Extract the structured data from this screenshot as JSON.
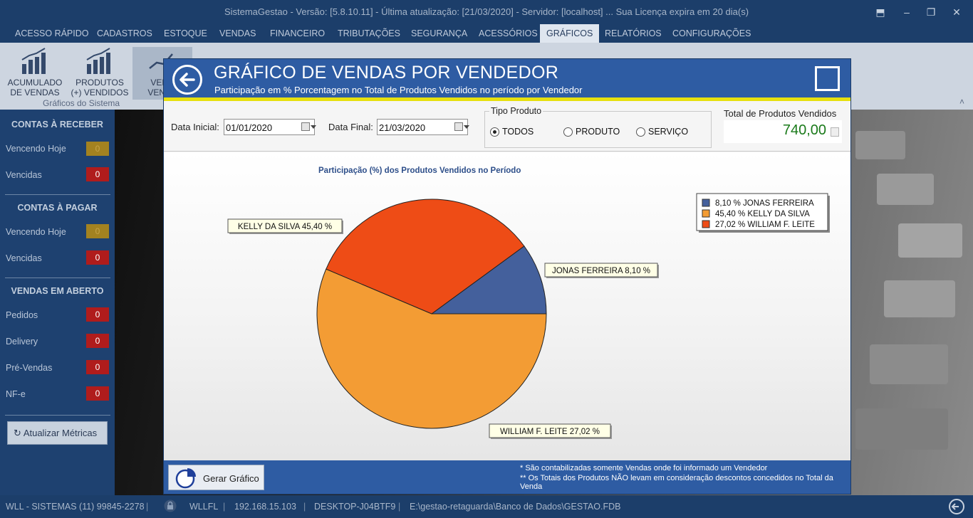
{
  "window": {
    "title": "SistemaGestao - Versão: [5.8.10.11] - Última atualização: [21/03/2020] - Servidor: [localhost] ... Sua Licença expira em 20 dia(s)",
    "buttons": [
      "restore-icon",
      "minimize-icon",
      "maximize-icon",
      "close-icon"
    ]
  },
  "menu": {
    "items": [
      "ACESSO RÁPIDO",
      "CADASTROS",
      "ESTOQUE",
      "VENDAS",
      "FINANCEIRO",
      "TRIBUTAÇÕES",
      "SEGURANÇA",
      "ACESSÓRIOS",
      "GRÁFICOS",
      "RELATÓRIOS",
      "CONFIGURAÇÕES"
    ],
    "active": "GRÁFICOS"
  },
  "ribbon": {
    "buttons": [
      {
        "line1": "ACUMULADO",
        "line2": "DE VENDAS"
      },
      {
        "line1": "PRODUTOS",
        "line2": "(+) VENDIDOS"
      },
      {
        "line1": "VEND",
        "line2": "VENDE"
      }
    ],
    "group_label": "Gráficos do Sistema"
  },
  "sidebar": {
    "receber": {
      "title": "CONTAS À RECEBER",
      "rows": [
        {
          "label": "Vencendo Hoje",
          "count": "0",
          "color": "#a38220"
        },
        {
          "label": "Vencidas",
          "count": "0",
          "color": "#b01c1c"
        }
      ]
    },
    "pagar": {
      "title": "CONTAS À PAGAR",
      "rows": [
        {
          "label": "Vencendo Hoje",
          "count": "0",
          "color": "#a38220"
        },
        {
          "label": "Vencidas",
          "count": "0",
          "color": "#b01c1c"
        }
      ]
    },
    "vendas": {
      "title": "VENDAS EM ABERTO",
      "rows": [
        {
          "label": "Pedidos",
          "count": "0"
        },
        {
          "label": "Delivery",
          "count": "0"
        },
        {
          "label": "Pré-Vendas",
          "count": "0"
        },
        {
          "label": "NF-e",
          "count": "0"
        }
      ]
    },
    "refresh_label": "Atualizar Métricas"
  },
  "status": {
    "company": "WLL - SISTEMAS (11) 99845-2278",
    "user": "WLLFL",
    "ip": "192.168.15.103",
    "host": "DESKTOP-J04BTF9",
    "db_path": "E:\\gestao-retaguarda\\Banco de Dados\\GESTAO.FDB"
  },
  "dialog": {
    "title": "GRÁFICO DE VENDAS POR VENDEDOR",
    "subtitle": "Participação em % Porcentagem no Total de Produtos Vendidos no período por Vendedor",
    "filters": {
      "data_inicial_label": "Data Inicial:",
      "data_inicial": "01/01/2020",
      "data_final_label": "Data Final:",
      "data_final": "21/03/2020",
      "tipo_label": "Tipo Produto",
      "tipos": [
        {
          "label": "TODOS",
          "selected": true
        },
        {
          "label": "PRODUTO",
          "selected": false
        },
        {
          "label": "SERVIÇO",
          "selected": false
        }
      ],
      "total_label": "Total de Produtos Vendidos",
      "total_value": "740,00"
    },
    "footer": {
      "gerar_label": "Gerar Gráfico",
      "note1": "* São contabilizadas somente Vendas onde foi informado um Vendedor",
      "note2": "** Os Totais dos Produtos NÃO levam em consideração descontos concedidos no Total da Venda"
    }
  },
  "chart_data": {
    "type": "pie",
    "title": "Participação (%)  dos Produtos Vendidos no Período",
    "categories": [
      "JONAS FERREIRA",
      "KELLY DA SILVA",
      "WILLIAM F. LEITE"
    ],
    "values": [
      8.1,
      45.4,
      27.02
    ],
    "colors": [
      "#44609c",
      "#f39c34",
      "#ee4c16"
    ],
    "data_labels": [
      "JONAS FERREIRA 8,10 %",
      "KELLY DA SILVA 45,40 %",
      "WILLIAM F. LEITE 27,02 %"
    ],
    "legend": [
      "8,10 % JONAS FERREIRA",
      "45,40 % KELLY DA SILVA",
      "27,02 % WILLIAM F. LEITE"
    ],
    "legend_position": "top-right"
  }
}
